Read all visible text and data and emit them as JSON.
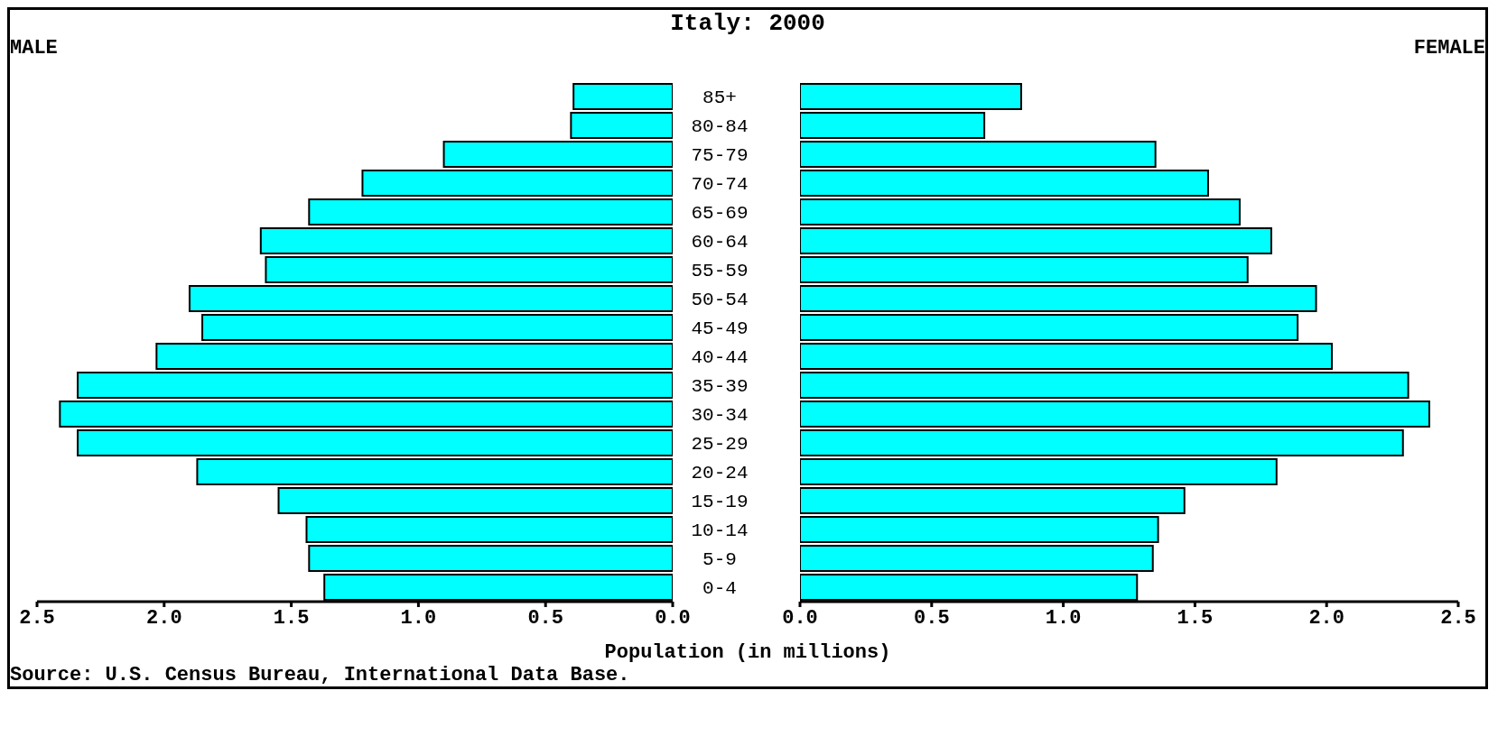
{
  "chart_data": [
    {
      "type": "bar",
      "orientation": "horizontal",
      "title": "Italy: 2000",
      "subtitle": "MALE",
      "xlabel": "Population (in millions)",
      "annotations": [
        "Source: U.S. Census Bureau, International Data Base."
      ],
      "categories": [
        "85+",
        "80-84",
        "75-79",
        "70-74",
        "65-69",
        "60-64",
        "55-59",
        "50-54",
        "45-49",
        "40-44",
        "35-39",
        "30-34",
        "25-29",
        "20-24",
        "15-19",
        "10-14",
        "5-9",
        "0-4"
      ],
      "series": [
        {
          "color": "#00ffff",
          "values": [
            0.39,
            0.4,
            0.9,
            1.22,
            1.43,
            1.62,
            1.6,
            1.9,
            1.85,
            2.03,
            2.34,
            2.41,
            2.34,
            1.87,
            1.55,
            1.44,
            1.43,
            1.37
          ]
        }
      ],
      "xlim": [
        2.5,
        0
      ],
      "xticks": [
        {
          "value": 2.5,
          "label": "2.5"
        },
        {
          "value": 2,
          "label": "2.0"
        },
        {
          "value": 1.5,
          "label": "1.5"
        },
        {
          "value": 1,
          "label": "1.0"
        },
        {
          "value": 0.5,
          "label": "0.5"
        },
        {
          "value": 0,
          "label": "0.0"
        }
      ]
    },
    {
      "type": "bar",
      "orientation": "horizontal",
      "subtitle": "FEMALE",
      "categories": [
        null,
        null,
        null,
        null,
        null,
        null,
        null,
        null,
        null,
        null,
        null,
        null,
        null,
        null,
        null,
        null,
        null,
        null
      ],
      "series": [
        {
          "color": "#00ffff",
          "values": [
            0.84,
            0.7,
            1.35,
            1.55,
            1.67,
            1.79,
            1.7,
            1.96,
            1.89,
            2.02,
            2.31,
            2.39,
            2.29,
            1.81,
            1.46,
            1.36,
            1.34,
            1.28
          ]
        }
      ],
      "xlim": [
        0,
        2.5
      ],
      "xticks": [
        {
          "value": 0,
          "label": "0.0"
        },
        {
          "value": 0.5,
          "label": "0.5"
        },
        {
          "value": 1,
          "label": "1.0"
        },
        {
          "value": 1.5,
          "label": "1.5"
        },
        {
          "value": 2,
          "label": "2.0"
        },
        {
          "value": 2.5,
          "label": "2.5"
        }
      ]
    }
  ]
}
